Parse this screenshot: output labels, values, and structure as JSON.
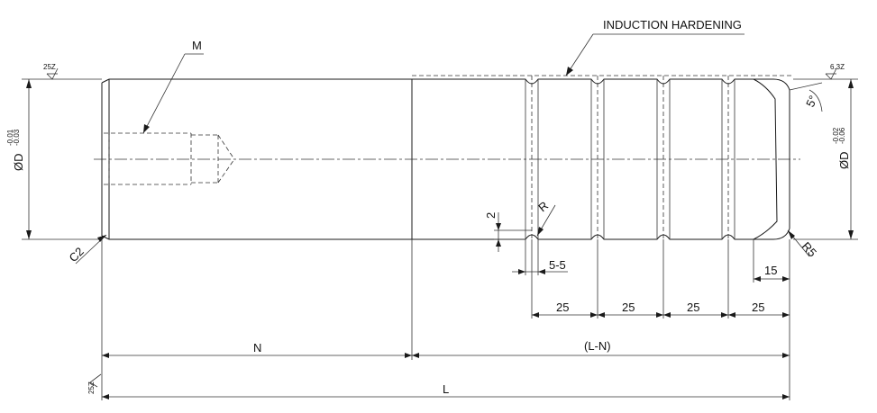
{
  "labels": {
    "induction_hardening": "INDUCTION HARDENING",
    "thread": "M",
    "chamfer": "C2",
    "fillet_r": "R",
    "fillet_r5": "R5",
    "angle": "5°",
    "groove_depth": "2",
    "groove_width": "5-5",
    "end_length": "15",
    "pitch_1": "25",
    "pitch_2": "25",
    "pitch_3": "25",
    "pitch_4": "25",
    "dim_n": "N",
    "dim_l_minus_n": "(L-N)",
    "dim_l": "L"
  },
  "left_diameter": {
    "symbol": "ØD",
    "upper_tol": "-0.01",
    "lower_tol": "-0.03"
  },
  "right_diameter": {
    "symbol": "ØD",
    "upper_tol": "-0.02",
    "lower_tol": "-0.06"
  },
  "surface_finish": {
    "left_top": "25Z",
    "right_top": "6.3Z",
    "bottom_left": "25Z"
  }
}
